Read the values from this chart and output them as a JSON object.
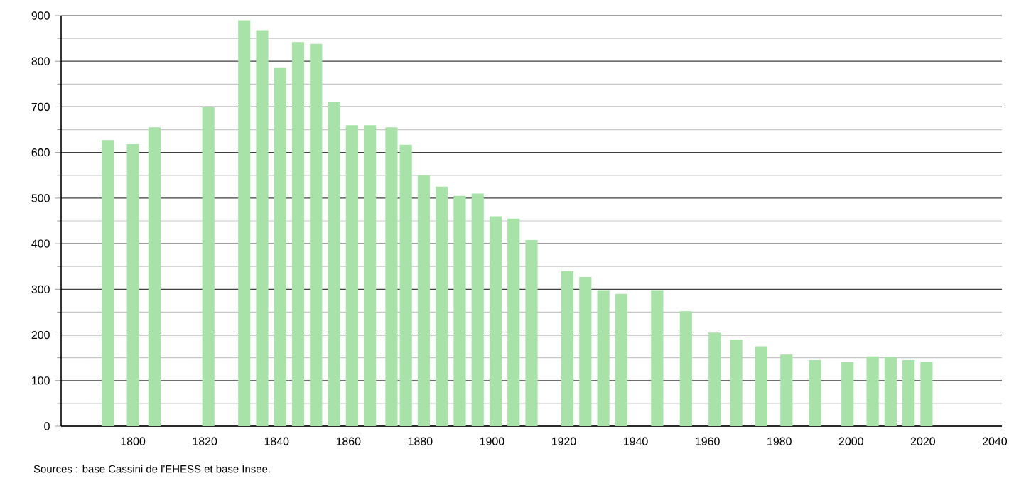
{
  "chart_data": {
    "type": "bar",
    "x": [
      1793,
      1800,
      1806,
      1821,
      1831,
      1836,
      1841,
      1846,
      1851,
      1856,
      1861,
      1866,
      1872,
      1876,
      1881,
      1886,
      1891,
      1896,
      1901,
      1906,
      1911,
      1921,
      1926,
      1931,
      1936,
      1946,
      1954,
      1962,
      1968,
      1975,
      1982,
      1990,
      1999,
      2006,
      2011,
      2016,
      2021
    ],
    "values": [
      627,
      618,
      655,
      700,
      890,
      868,
      785,
      842,
      838,
      710,
      660,
      660,
      655,
      617,
      550,
      525,
      505,
      510,
      460,
      455,
      408,
      340,
      327,
      298,
      290,
      298,
      252,
      205,
      190,
      175,
      157,
      145,
      140,
      153,
      152,
      145,
      141
    ],
    "color": "#a8e2a8",
    "xlim": [
      1780,
      2042
    ],
    "xticks": [
      1800,
      1820,
      1840,
      1860,
      1880,
      1900,
      1920,
      1940,
      1960,
      1980,
      2000,
      2020,
      2040
    ],
    "ylim": [
      0,
      900
    ],
    "yticks": [
      0,
      100,
      200,
      300,
      400,
      500,
      600,
      700,
      800,
      900
    ],
    "grid": "y",
    "annotations": [
      "Sources : base Cassini de l'EHESS et base Insee."
    ]
  }
}
